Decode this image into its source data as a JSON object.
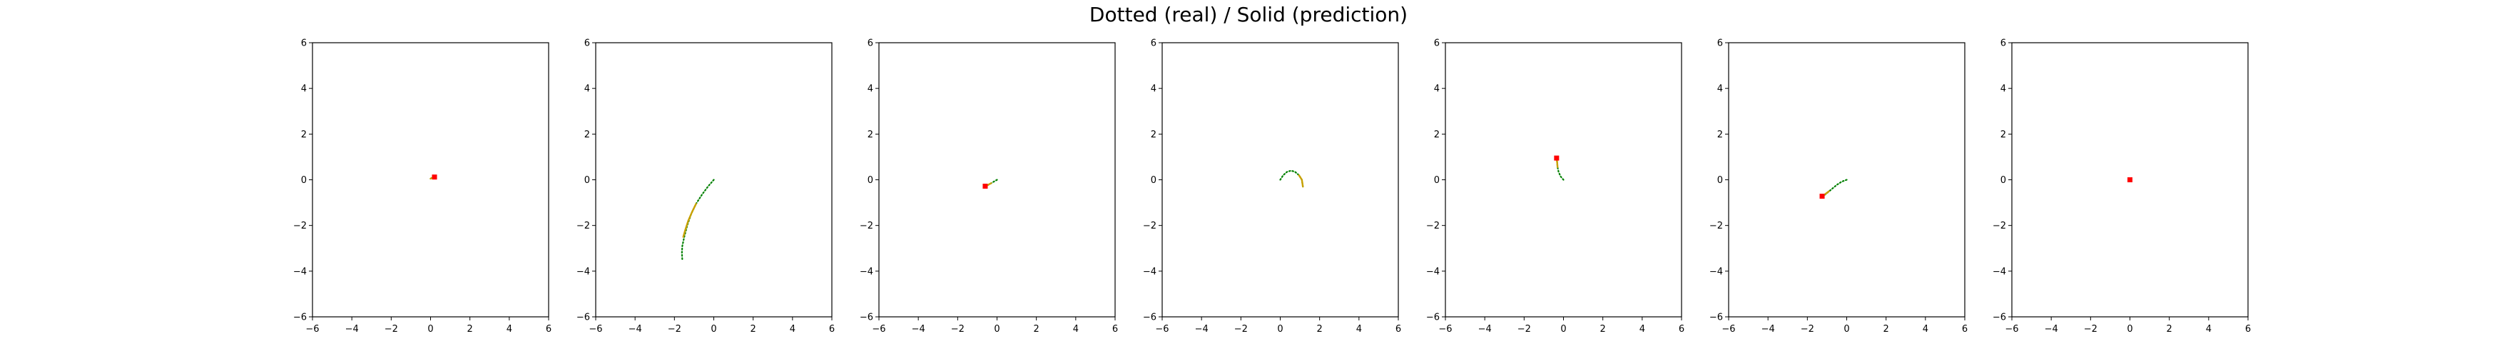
{
  "figure": {
    "suptitle": "Dotted (real) / Solid (prediction)"
  },
  "colors": {
    "real": "#008000",
    "prediction": "#c8a000",
    "marker": "#ff0000",
    "axes": "#000000",
    "background": "#ffffff"
  },
  "chart_data": [
    {
      "type": "line",
      "title": "",
      "xlabel": "",
      "ylabel": "",
      "xlim": [
        -6,
        6
      ],
      "ylim": [
        -6,
        6
      ],
      "xticks": [
        -6,
        -4,
        -2,
        0,
        2,
        4,
        6
      ],
      "yticks": [
        -6,
        -4,
        -2,
        0,
        2,
        4,
        6
      ],
      "grid": false,
      "series": [
        {
          "style": "dotted",
          "x": [
            0.0,
            0.1,
            0.2
          ],
          "y": [
            0.05,
            0.1,
            0.12
          ]
        },
        {
          "style": "solid",
          "x": [
            0.0,
            0.1,
            0.2
          ],
          "y": [
            0.05,
            0.1,
            0.12
          ]
        }
      ],
      "marker": {
        "x": 0.2,
        "y": 0.12
      }
    },
    {
      "type": "line",
      "title": "",
      "xlabel": "",
      "ylabel": "",
      "xlim": [
        -6,
        6
      ],
      "ylim": [
        -6,
        6
      ],
      "xticks": [
        -6,
        -4,
        -2,
        0,
        2,
        4,
        6
      ],
      "yticks": [
        -6,
        -4,
        -2,
        0,
        2,
        4,
        6
      ],
      "grid": false,
      "series": [
        {
          "style": "dotted",
          "x": [
            0.0,
            -0.3,
            -0.6,
            -0.9,
            -1.15,
            -1.35,
            -1.5,
            -1.6,
            -1.62,
            -1.6
          ],
          "y": [
            0.0,
            -0.3,
            -0.65,
            -1.05,
            -1.5,
            -2.0,
            -2.5,
            -2.9,
            -3.2,
            -3.5
          ]
        },
        {
          "style": "solid",
          "x": [
            -0.9,
            -1.1,
            -1.3,
            -1.45,
            -1.55
          ],
          "y": [
            -1.05,
            -1.4,
            -1.8,
            -2.2,
            -2.5
          ]
        }
      ],
      "marker": null
    },
    {
      "type": "line",
      "title": "",
      "xlabel": "",
      "ylabel": "",
      "xlim": [
        -6,
        6
      ],
      "ylim": [
        -6,
        6
      ],
      "xticks": [
        -6,
        -4,
        -2,
        0,
        2,
        4,
        6
      ],
      "yticks": [
        -6,
        -4,
        -2,
        0,
        2,
        4,
        6
      ],
      "grid": false,
      "series": [
        {
          "style": "dotted",
          "x": [
            0.0,
            -0.2,
            -0.4,
            -0.6
          ],
          "y": [
            0.0,
            -0.1,
            -0.2,
            -0.3
          ]
        },
        {
          "style": "solid",
          "x": [
            -0.3,
            -0.45,
            -0.6
          ],
          "y": [
            -0.15,
            -0.22,
            -0.28
          ]
        }
      ],
      "marker": {
        "x": -0.6,
        "y": -0.28
      }
    },
    {
      "type": "line",
      "title": "",
      "xlabel": "",
      "ylabel": "",
      "xlim": [
        -6,
        6
      ],
      "ylim": [
        -6,
        6
      ],
      "xticks": [
        -6,
        -4,
        -2,
        0,
        2,
        4,
        6
      ],
      "yticks": [
        -6,
        -4,
        -2,
        0,
        2,
        4,
        6
      ],
      "grid": false,
      "series": [
        {
          "style": "dotted",
          "x": [
            0.0,
            0.15,
            0.35,
            0.55,
            0.75,
            0.95,
            1.1,
            1.15
          ],
          "y": [
            0.0,
            0.2,
            0.35,
            0.4,
            0.35,
            0.2,
            0.0,
            -0.3
          ]
        },
        {
          "style": "solid",
          "x": [
            0.95,
            1.1,
            1.15
          ],
          "y": [
            0.2,
            0.0,
            -0.3
          ]
        }
      ],
      "marker": null
    },
    {
      "type": "line",
      "title": "",
      "xlabel": "",
      "ylabel": "",
      "xlim": [
        -6,
        6
      ],
      "ylim": [
        -6,
        6
      ],
      "xticks": [
        -6,
        -4,
        -2,
        0,
        2,
        4,
        6
      ],
      "yticks": [
        -6,
        -4,
        -2,
        0,
        2,
        4,
        6
      ],
      "grid": false,
      "series": [
        {
          "style": "dotted",
          "x": [
            0.0,
            -0.15,
            -0.25,
            -0.3,
            -0.32,
            -0.35
          ],
          "y": [
            0.0,
            0.15,
            0.35,
            0.55,
            0.75,
            1.0
          ]
        },
        {
          "style": "solid",
          "x": [
            -0.3,
            -0.32,
            -0.35
          ],
          "y": [
            0.55,
            0.75,
            0.95
          ]
        }
      ],
      "marker": {
        "x": -0.35,
        "y": 0.95
      }
    },
    {
      "type": "line",
      "title": "",
      "xlabel": "",
      "ylabel": "",
      "xlim": [
        -6,
        6
      ],
      "ylim": [
        -6,
        6
      ],
      "xticks": [
        -6,
        -4,
        -2,
        0,
        2,
        4,
        6
      ],
      "yticks": [
        -6,
        -4,
        -2,
        0,
        2,
        4,
        6
      ],
      "grid": false,
      "series": [
        {
          "style": "dotted",
          "x": [
            0.0,
            -0.25,
            -0.5,
            -0.75,
            -1.0,
            -1.25
          ],
          "y": [
            0.0,
            -0.08,
            -0.22,
            -0.4,
            -0.58,
            -0.75
          ]
        },
        {
          "style": "solid",
          "x": [
            -0.9,
            -1.05,
            -1.25
          ],
          "y": [
            -0.5,
            -0.6,
            -0.72
          ]
        }
      ],
      "marker": {
        "x": -1.25,
        "y": -0.72
      }
    },
    {
      "type": "line",
      "title": "",
      "xlabel": "",
      "ylabel": "",
      "xlim": [
        -6,
        6
      ],
      "ylim": [
        -6,
        6
      ],
      "xticks": [
        -6,
        -4,
        -2,
        0,
        2,
        4,
        6
      ],
      "yticks": [
        -6,
        -4,
        -2,
        0,
        2,
        4,
        6
      ],
      "grid": false,
      "series": [
        {
          "style": "dotted",
          "x": [
            0.0
          ],
          "y": [
            0.0
          ]
        },
        {
          "style": "solid",
          "x": [
            0.0
          ],
          "y": [
            0.0
          ]
        }
      ],
      "marker": {
        "x": 0.0,
        "y": 0.0
      }
    }
  ]
}
